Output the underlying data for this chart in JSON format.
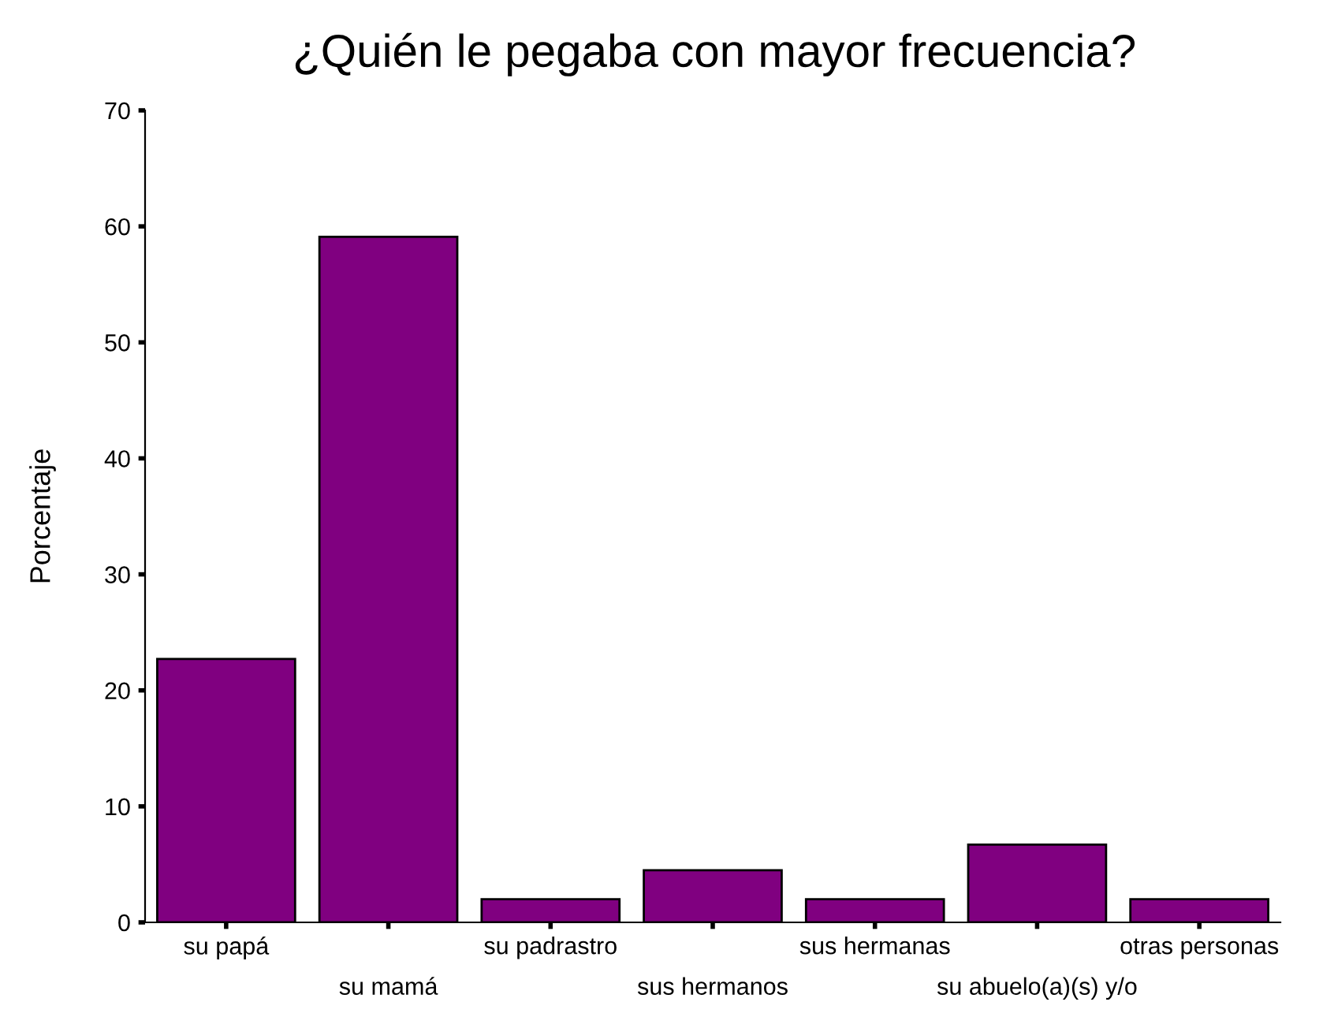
{
  "chart_data": {
    "type": "bar",
    "title": "¿Quién le pegaba con mayor frecuencia?",
    "ylabel": "Porcentaje",
    "categories": [
      "su papá",
      "su mamá",
      "su padrastro",
      "sus hermanos",
      "sus hermanas",
      "su abuelo(a)(s) y/o",
      "otras personas"
    ],
    "values": [
      22.7,
      59.1,
      2.0,
      4.5,
      2.0,
      6.7,
      2.0
    ],
    "color": "#800080",
    "ylim": [
      0,
      70
    ],
    "yticks": [
      0,
      10,
      20,
      30,
      40,
      50,
      60,
      70
    ],
    "grid": false,
    "legend": false
  }
}
